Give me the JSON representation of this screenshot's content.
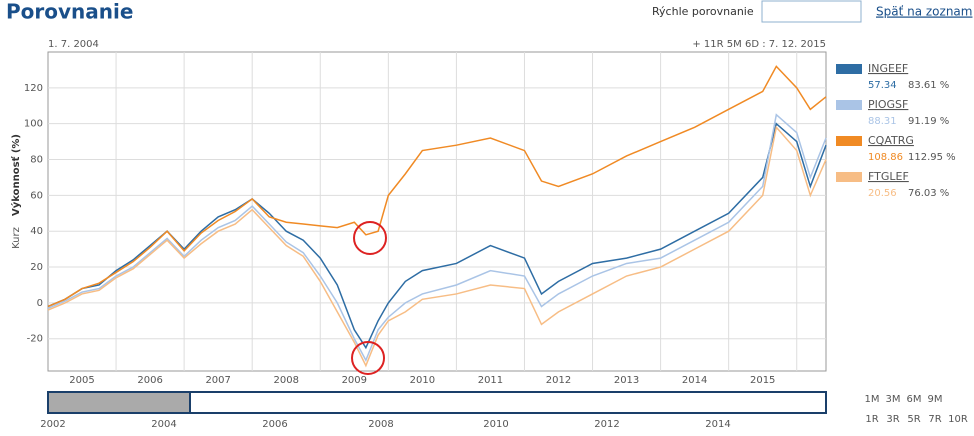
{
  "header": {
    "title": "Porovnanie",
    "search_label": "Rýchle porovnanie",
    "back_link": "Späť na zoznam"
  },
  "range": {
    "start": "1. 7. 2004",
    "end": "+ 11R 5M 6D : 7. 12. 2015"
  },
  "chart_data": {
    "type": "line",
    "ylabel": "Výkonnosť (%)",
    "ylabel2": "Kurz",
    "x": [
      2004.5,
      2004.75,
      2005.0,
      2005.25,
      2005.5,
      2005.75,
      2006.0,
      2006.25,
      2006.5,
      2006.75,
      2007.0,
      2007.25,
      2007.5,
      2007.75,
      2008.0,
      2008.25,
      2008.5,
      2008.75,
      2009.0,
      2009.17,
      2009.35,
      2009.5,
      2009.75,
      2010.0,
      2010.5,
      2011.0,
      2011.5,
      2011.75,
      2012.0,
      2012.5,
      2013.0,
      2013.5,
      2014.0,
      2014.5,
      2015.0,
      2015.2,
      2015.5,
      2015.7,
      2015.93
    ],
    "xlim": [
      2004.5,
      2015.93
    ],
    "xticks": [
      2005,
      2006,
      2007,
      2008,
      2009,
      2010,
      2011,
      2012,
      2013,
      2014,
      2015
    ],
    "xgrid": [
      2005.5,
      2006.5,
      2007.5,
      2008.5,
      2009.5,
      2010.5,
      2011.5,
      2012.5,
      2013.5,
      2014.5,
      2015.5
    ],
    "ylim": [
      -38,
      140
    ],
    "yticks": [
      -20,
      0,
      20,
      40,
      60,
      80,
      100,
      120
    ],
    "grid": true,
    "series": [
      {
        "name": "INGEEF",
        "color": "#2e6da4",
        "price": "57.34",
        "performance": "83.61 %",
        "values": [
          -2,
          2,
          8,
          10,
          18,
          24,
          32,
          40,
          30,
          40,
          48,
          52,
          58,
          50,
          40,
          35,
          25,
          10,
          -15,
          -25,
          -10,
          0,
          12,
          18,
          22,
          32,
          25,
          5,
          12,
          22,
          25,
          30,
          40,
          50,
          70,
          100,
          90,
          65,
          88
        ]
      },
      {
        "name": "PIOGSF",
        "color": "#aac4e6",
        "price": "88.31",
        "performance": "91.19 %",
        "values": [
          -3,
          1,
          6,
          8,
          15,
          20,
          28,
          36,
          26,
          35,
          42,
          46,
          54,
          44,
          34,
          28,
          15,
          0,
          -20,
          -32,
          -15,
          -8,
          0,
          5,
          10,
          18,
          15,
          -2,
          5,
          15,
          22,
          25,
          35,
          45,
          65,
          105,
          95,
          70,
          92
        ]
      },
      {
        "name": "CQATRG",
        "color": "#f08a24",
        "price": "108.86",
        "performance": "112.95 %",
        "values": [
          -2,
          2,
          8,
          11,
          17,
          23,
          31,
          40,
          29,
          39,
          46,
          51,
          58,
          48,
          45,
          44,
          43,
          42,
          45,
          38,
          40,
          60,
          72,
          85,
          88,
          92,
          85,
          68,
          65,
          72,
          82,
          90,
          98,
          108,
          118,
          132,
          120,
          108,
          115
        ]
      },
      {
        "name": "FTGLEF",
        "color": "#f7bd85",
        "price": "20.56",
        "performance": "76.03 %",
        "values": [
          -4,
          0,
          5,
          7,
          14,
          19,
          27,
          35,
          25,
          33,
          40,
          44,
          52,
          42,
          32,
          26,
          12,
          -5,
          -22,
          -35,
          -18,
          -10,
          -5,
          2,
          5,
          10,
          8,
          -12,
          -5,
          5,
          15,
          20,
          30,
          40,
          60,
          98,
          85,
          60,
          80
        ]
      }
    ]
  },
  "navigator": {
    "labels": [
      "2002",
      "2004",
      "2006",
      "2008",
      "2010",
      "2012",
      "2014"
    ],
    "buttons": [
      "1M",
      "3M",
      "6M",
      "9M",
      "1R",
      "3R",
      "5R",
      "7R",
      "10R"
    ]
  }
}
